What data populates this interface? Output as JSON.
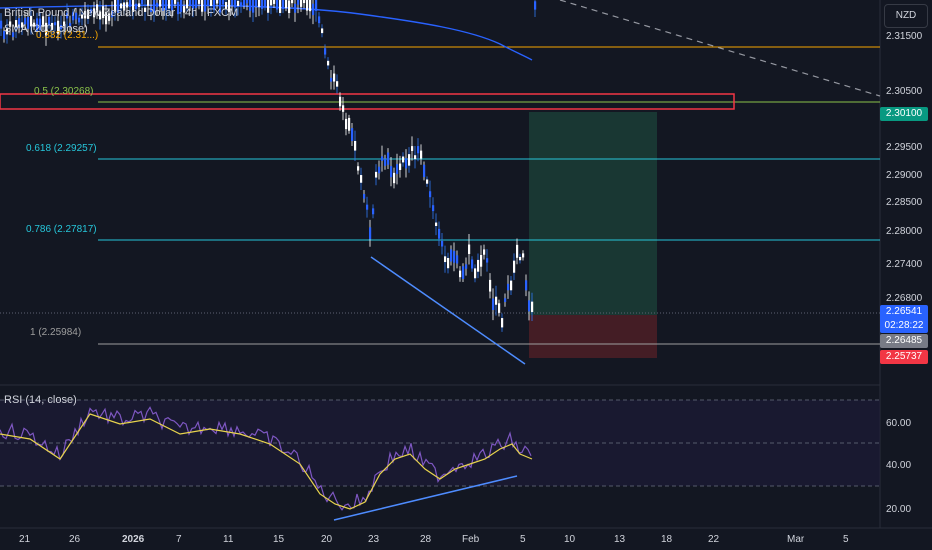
{
  "header": {
    "symbol_title": "British Pound / New Zealand Dollar · 4h · FXCM",
    "sma_label": "SMA (200, close)",
    "currency": "NZD"
  },
  "rsi": {
    "label": "RSI (14, close)",
    "axis_ticks": [
      "60.00",
      "40.00",
      "20.00"
    ]
  },
  "price_axis": {
    "ticks": [
      "2.31500",
      "2.30500",
      "2.30100",
      "2.29500",
      "2.29000",
      "2.28500",
      "2.28000",
      "2.27400",
      "2.26800",
      "2.26541",
      "2.26485",
      "2.25737"
    ],
    "tags": [
      {
        "value": "2.30100",
        "color": "#089981"
      },
      {
        "value": "2.26541",
        "sub": "02:28:22",
        "color": "#2962ff"
      },
      {
        "value": "2.26485",
        "color": "#787b86"
      },
      {
        "value": "2.25737",
        "color": "#f23645"
      }
    ]
  },
  "fib_levels": [
    {
      "label": "0.382 (2.31...)",
      "color": "#f7a600"
    },
    {
      "label": "0.5 (2.30268)",
      "color": "#8bc34a"
    },
    {
      "label": "0.618 (2.29257)",
      "color": "#26c6da"
    },
    {
      "label": "0.786 (2.27817)",
      "color": "#26c6da"
    },
    {
      "label": "1 (2.25984)",
      "color": "#9e9e9e"
    }
  ],
  "time_axis": [
    "21",
    "26",
    "2026",
    "7",
    "11",
    "15",
    "20",
    "23",
    "28",
    "Feb",
    "5",
    "10",
    "13",
    "18",
    "22",
    "Mar",
    "5"
  ],
  "colors": {
    "bg": "#131722",
    "candle": "#ffffff",
    "sma": "#2962ff",
    "rsi_line": "#7e57c2",
    "rsi_ma": "#ffeb3b",
    "trendline": "#4e8cff",
    "tp_zone": "#1c3a36",
    "sl_zone": "#4a1f26"
  }
}
